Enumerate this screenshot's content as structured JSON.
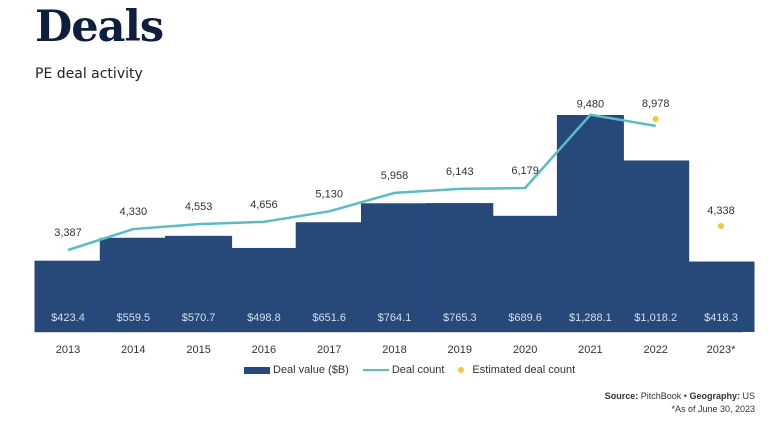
{
  "header": {
    "title": "Deals",
    "subtitle": "PE deal activity"
  },
  "colors": {
    "bar": "#26497a",
    "line": "#5bbcc4",
    "estimate": "#f2c83b",
    "title": "#0f1e3c"
  },
  "chart_data": {
    "type": "bar",
    "title": "PE deal activity",
    "categories": [
      "2013",
      "2014",
      "2015",
      "2016",
      "2017",
      "2018",
      "2019",
      "2020",
      "2021",
      "2022",
      "2023*"
    ],
    "series": [
      {
        "name": "Deal value ($B)",
        "type": "bar",
        "values": [
          423.4,
          559.5,
          570.7,
          498.8,
          651.6,
          764.1,
          765.3,
          689.6,
          1288.1,
          1018.2,
          418.3
        ],
        "labels": [
          "$423.4",
          "$559.5",
          "$570.7",
          "$498.8",
          "$651.6",
          "$764.1",
          "$765.3",
          "$689.6",
          "$1,288.1",
          "$1,018.2",
          "$418.3"
        ]
      },
      {
        "name": "Deal count",
        "type": "line",
        "values": [
          3387,
          4330,
          4553,
          4656,
          5130,
          5958,
          6143,
          6179,
          9480,
          8978,
          null
        ],
        "labels": [
          "3,387",
          "4,330",
          "4,553",
          "4,656",
          "5,130",
          "5,958",
          "6,143",
          "6,179",
          "9,480",
          "",
          ""
        ]
      },
      {
        "name": "Estimated deal count",
        "type": "scatter",
        "values": [
          null,
          null,
          null,
          null,
          null,
          null,
          null,
          null,
          null,
          8978,
          4338
        ],
        "labels": [
          "",
          "",
          "",
          "",
          "",
          "",
          "",
          "",
          "",
          "8,978",
          "4,338"
        ]
      }
    ],
    "xlabel": "",
    "ylabel": "",
    "grid": false,
    "legend": "bottom"
  },
  "legend": {
    "items": [
      "Deal value ($B)",
      "Deal count",
      "Estimated deal count"
    ]
  },
  "footer": {
    "source_label": "Source:",
    "source_value": "PitchBook",
    "sep": "•",
    "geo_label": "Geography:",
    "geo_value": "US",
    "note": "*As of June 30, 2023"
  }
}
